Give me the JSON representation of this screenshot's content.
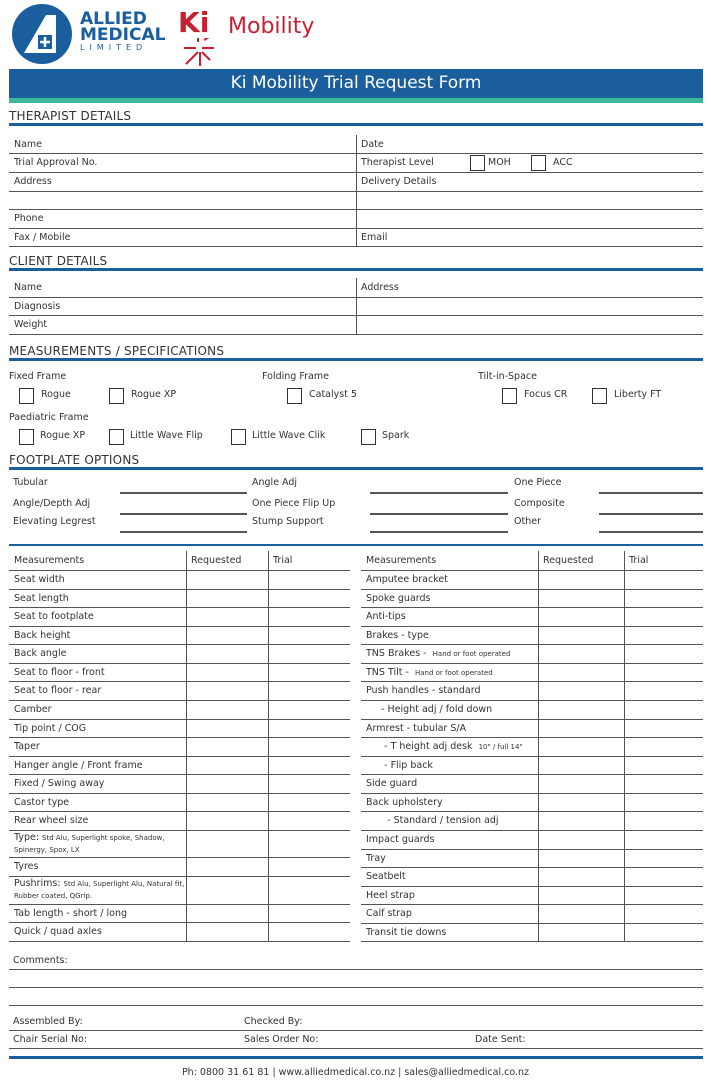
{
  "brand": {
    "allied_line1": "ALLIED",
    "allied_line2": "MEDICAL",
    "allied_line3": "LIMITED",
    "ki": "Ki",
    "mobility": "Mobility",
    "colors": {
      "blue": "#1b5e9e",
      "teal": "#3bb99a",
      "red": "#c8202f"
    }
  },
  "title": "Ki Mobility Trial Request Form",
  "therapist": {
    "heading": "THERAPIST DETAILS",
    "left": [
      "Name",
      "Trial Approval No.",
      "Address",
      "",
      "Phone",
      "Fax / Mobile"
    ],
    "right": [
      "Date",
      "Therapist Level",
      "Delivery Details",
      "",
      "",
      "Email"
    ],
    "level_options": [
      "MOH",
      "ACC"
    ]
  },
  "client": {
    "heading": "CLIENT DETAILS",
    "left": [
      "Name",
      "Diagnosis",
      "Weight"
    ],
    "right": [
      "Address",
      "",
      ""
    ]
  },
  "specs": {
    "heading": "MEASUREMENTS / SPECIFICATIONS",
    "fixed": "Fixed Frame",
    "folding": "Folding Frame",
    "tilt": "Tilt-in-Space",
    "paediatric": "Paediatric Frame",
    "row1": [
      "Rogue",
      "Rogue XP",
      "Catalyst 5",
      "Focus CR",
      "Liberty FT"
    ],
    "row2": [
      "Rogue XP",
      "Little Wave Flip",
      "Little Wave Clik",
      "Spark"
    ]
  },
  "footplate": {
    "heading": "FOOTPLATE OPTIONS",
    "col1": [
      "Tubular",
      "Angle/Depth Adj",
      "Elevating Legrest"
    ],
    "col2": [
      "Angle Adj",
      "One Piece Flip Up",
      "Stump Support"
    ],
    "col3": [
      "One Piece",
      "Composite",
      "Other"
    ]
  },
  "table_headers": [
    "Measurements",
    "Requested",
    "Trial"
  ],
  "left_rows": [
    {
      "main": "Seat width"
    },
    {
      "main": "Seat length"
    },
    {
      "main": "Seat to footplate"
    },
    {
      "main": "Back height"
    },
    {
      "main": "Back angle"
    },
    {
      "main": "Seat to floor - front"
    },
    {
      "main": "Seat to floor - rear"
    },
    {
      "main": "Camber"
    },
    {
      "main": "Tip point / COG"
    },
    {
      "main": "Taper"
    },
    {
      "main": "Hanger angle / Front frame"
    },
    {
      "main": "Fixed / Swing away"
    },
    {
      "main": "Castor type"
    },
    {
      "main": "Rear wheel size"
    },
    {
      "main": "Type:",
      "small": "Std Alu, Superlight spoke, Shadow,",
      "small2": "Spinergy, Spox, LX",
      "tall": true
    },
    {
      "main": "Tyres"
    },
    {
      "main": "Pushrims:",
      "small": "Std Alu, Superlight Alu, Natural fit,",
      "small2": "Rubber coated, QGrip.",
      "tall": true
    },
    {
      "main": "Tab length - short / long"
    },
    {
      "main": "Quick / quad axles"
    }
  ],
  "right_rows": [
    {
      "main": "Amputee bracket"
    },
    {
      "main": "Spoke guards"
    },
    {
      "main": "Anti-tips"
    },
    {
      "main": "Brakes - type"
    },
    {
      "main": "TNS Brakes - ",
      "small": "Hand or foot operated"
    },
    {
      "main": "TNS Tilt - ",
      "small": "Hand or foot operated"
    },
    {
      "main": "Push handles - standard"
    },
    {
      "main": "     - Height adj / fold down"
    },
    {
      "main": "Armrest - tubular S/A"
    },
    {
      "main": "      - T height adj desk ",
      "small": "10\" / full 14\""
    },
    {
      "main": "      - Flip back"
    },
    {
      "main": "Side guard"
    },
    {
      "main": "Back upholstery"
    },
    {
      "main": "       - Standard / tension adj"
    },
    {
      "main": "Impact guards"
    },
    {
      "main": "Tray"
    },
    {
      "main": "Seatbelt"
    },
    {
      "main": "Heel strap"
    },
    {
      "main": "Calf strap"
    },
    {
      "main": "Transit tie downs"
    }
  ],
  "comments": "Comments:",
  "signoff": {
    "assembled": "Assembled By:",
    "checked": "Checked By:",
    "serial": "Chair Serial No:",
    "order": "Sales Order No:",
    "sent": "Date Sent:"
  },
  "footer": "Ph: 0800 31 61 81 | www.alliedmedical.co.nz | sales@alliedmedical.co.nz"
}
